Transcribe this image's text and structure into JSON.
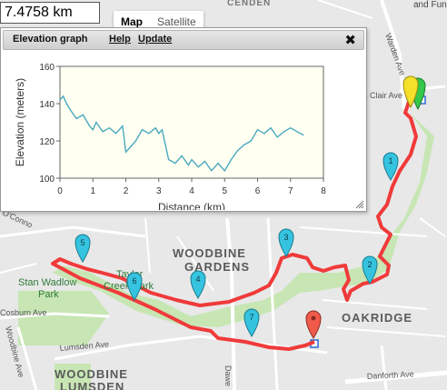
{
  "distance_box": {
    "value": "7.4758 km"
  },
  "map_type": {
    "tabs": [
      "Map",
      "Satellite"
    ]
  },
  "map": {
    "labels": {
      "woodbine_gardens_1": "WOODBINE",
      "woodbine_gardens_2": "GARDENS",
      "oakridge": "OAKRIDGE",
      "woodbine_lumsden_1": "WOODBINE",
      "woodbine_lumsden_2": "LUMSDEN",
      "stan_wadlow_1": "Stan Wadlow",
      "stan_wadlow_2": "Park",
      "taylor_creek_1": "Taylor",
      "taylor_creek_2": "Creek Park",
      "cosburn_ave": "Cosburn Ave",
      "lumsden_ave": "Lumsden Ave",
      "danforth_ave": "Danforth Ave",
      "warden_ave": "Warden Ave",
      "st_clair_ave": "t Clair Ave",
      "oconnor": "O'Conno",
      "woodbine_ave": "Woodbine Ave",
      "dawes": "Dawe",
      "and_fune": "and Fune",
      "top_partial": "CENDEN"
    },
    "markers": [
      "1",
      "2",
      "3",
      "4",
      "5",
      "6",
      "7"
    ]
  },
  "elevation_panel": {
    "title": "Elevation graph",
    "help_label": "Help",
    "update_label": "Update",
    "close_label": "✖"
  },
  "chart_data": {
    "type": "line",
    "title": "",
    "xlabel": "Distance (km)",
    "ylabel": "Elevation (meters)",
    "xlim": [
      0,
      8
    ],
    "ylim": [
      100,
      160
    ],
    "xticks": [
      "0",
      "1",
      "2",
      "3",
      "4",
      "5",
      "6",
      "7",
      "8"
    ],
    "yticks": [
      "100",
      "120",
      "140",
      "160"
    ],
    "line_color": "#4aa8c0",
    "series": [
      {
        "x": [
          0,
          0.1,
          0.2,
          0.3,
          0.5,
          0.7,
          0.9,
          1.0,
          1.1,
          1.3,
          1.5,
          1.7,
          1.9,
          2.0,
          2.2,
          2.3,
          2.5,
          2.7,
          2.9,
          3.0,
          3.1,
          3.3,
          3.5,
          3.7,
          3.9,
          4.0,
          4.2,
          4.4,
          4.6,
          4.8,
          5.0,
          5.2,
          5.4,
          5.6,
          5.8,
          6.0,
          6.2,
          6.4,
          6.6,
          6.8,
          7.0,
          7.2,
          7.4
        ],
        "y": [
          142,
          144,
          140,
          137,
          132,
          134,
          128,
          126,
          130,
          125,
          127,
          124,
          128,
          114,
          118,
          120,
          126,
          124,
          127,
          124,
          126,
          110,
          108,
          112,
          107,
          110,
          106,
          109,
          104,
          108,
          104,
          110,
          115,
          118,
          120,
          126,
          124,
          127,
          122,
          125,
          127,
          125,
          123
        ]
      }
    ]
  },
  "colors": {
    "route": "#f03a3a",
    "park": "#c7e6b4",
    "marker": "#35c3e0",
    "end_marker": "#f05a4a",
    "start_yellow": "#f5e02a",
    "start_green": "#35c84a",
    "plot_bg": "#fffff2"
  }
}
